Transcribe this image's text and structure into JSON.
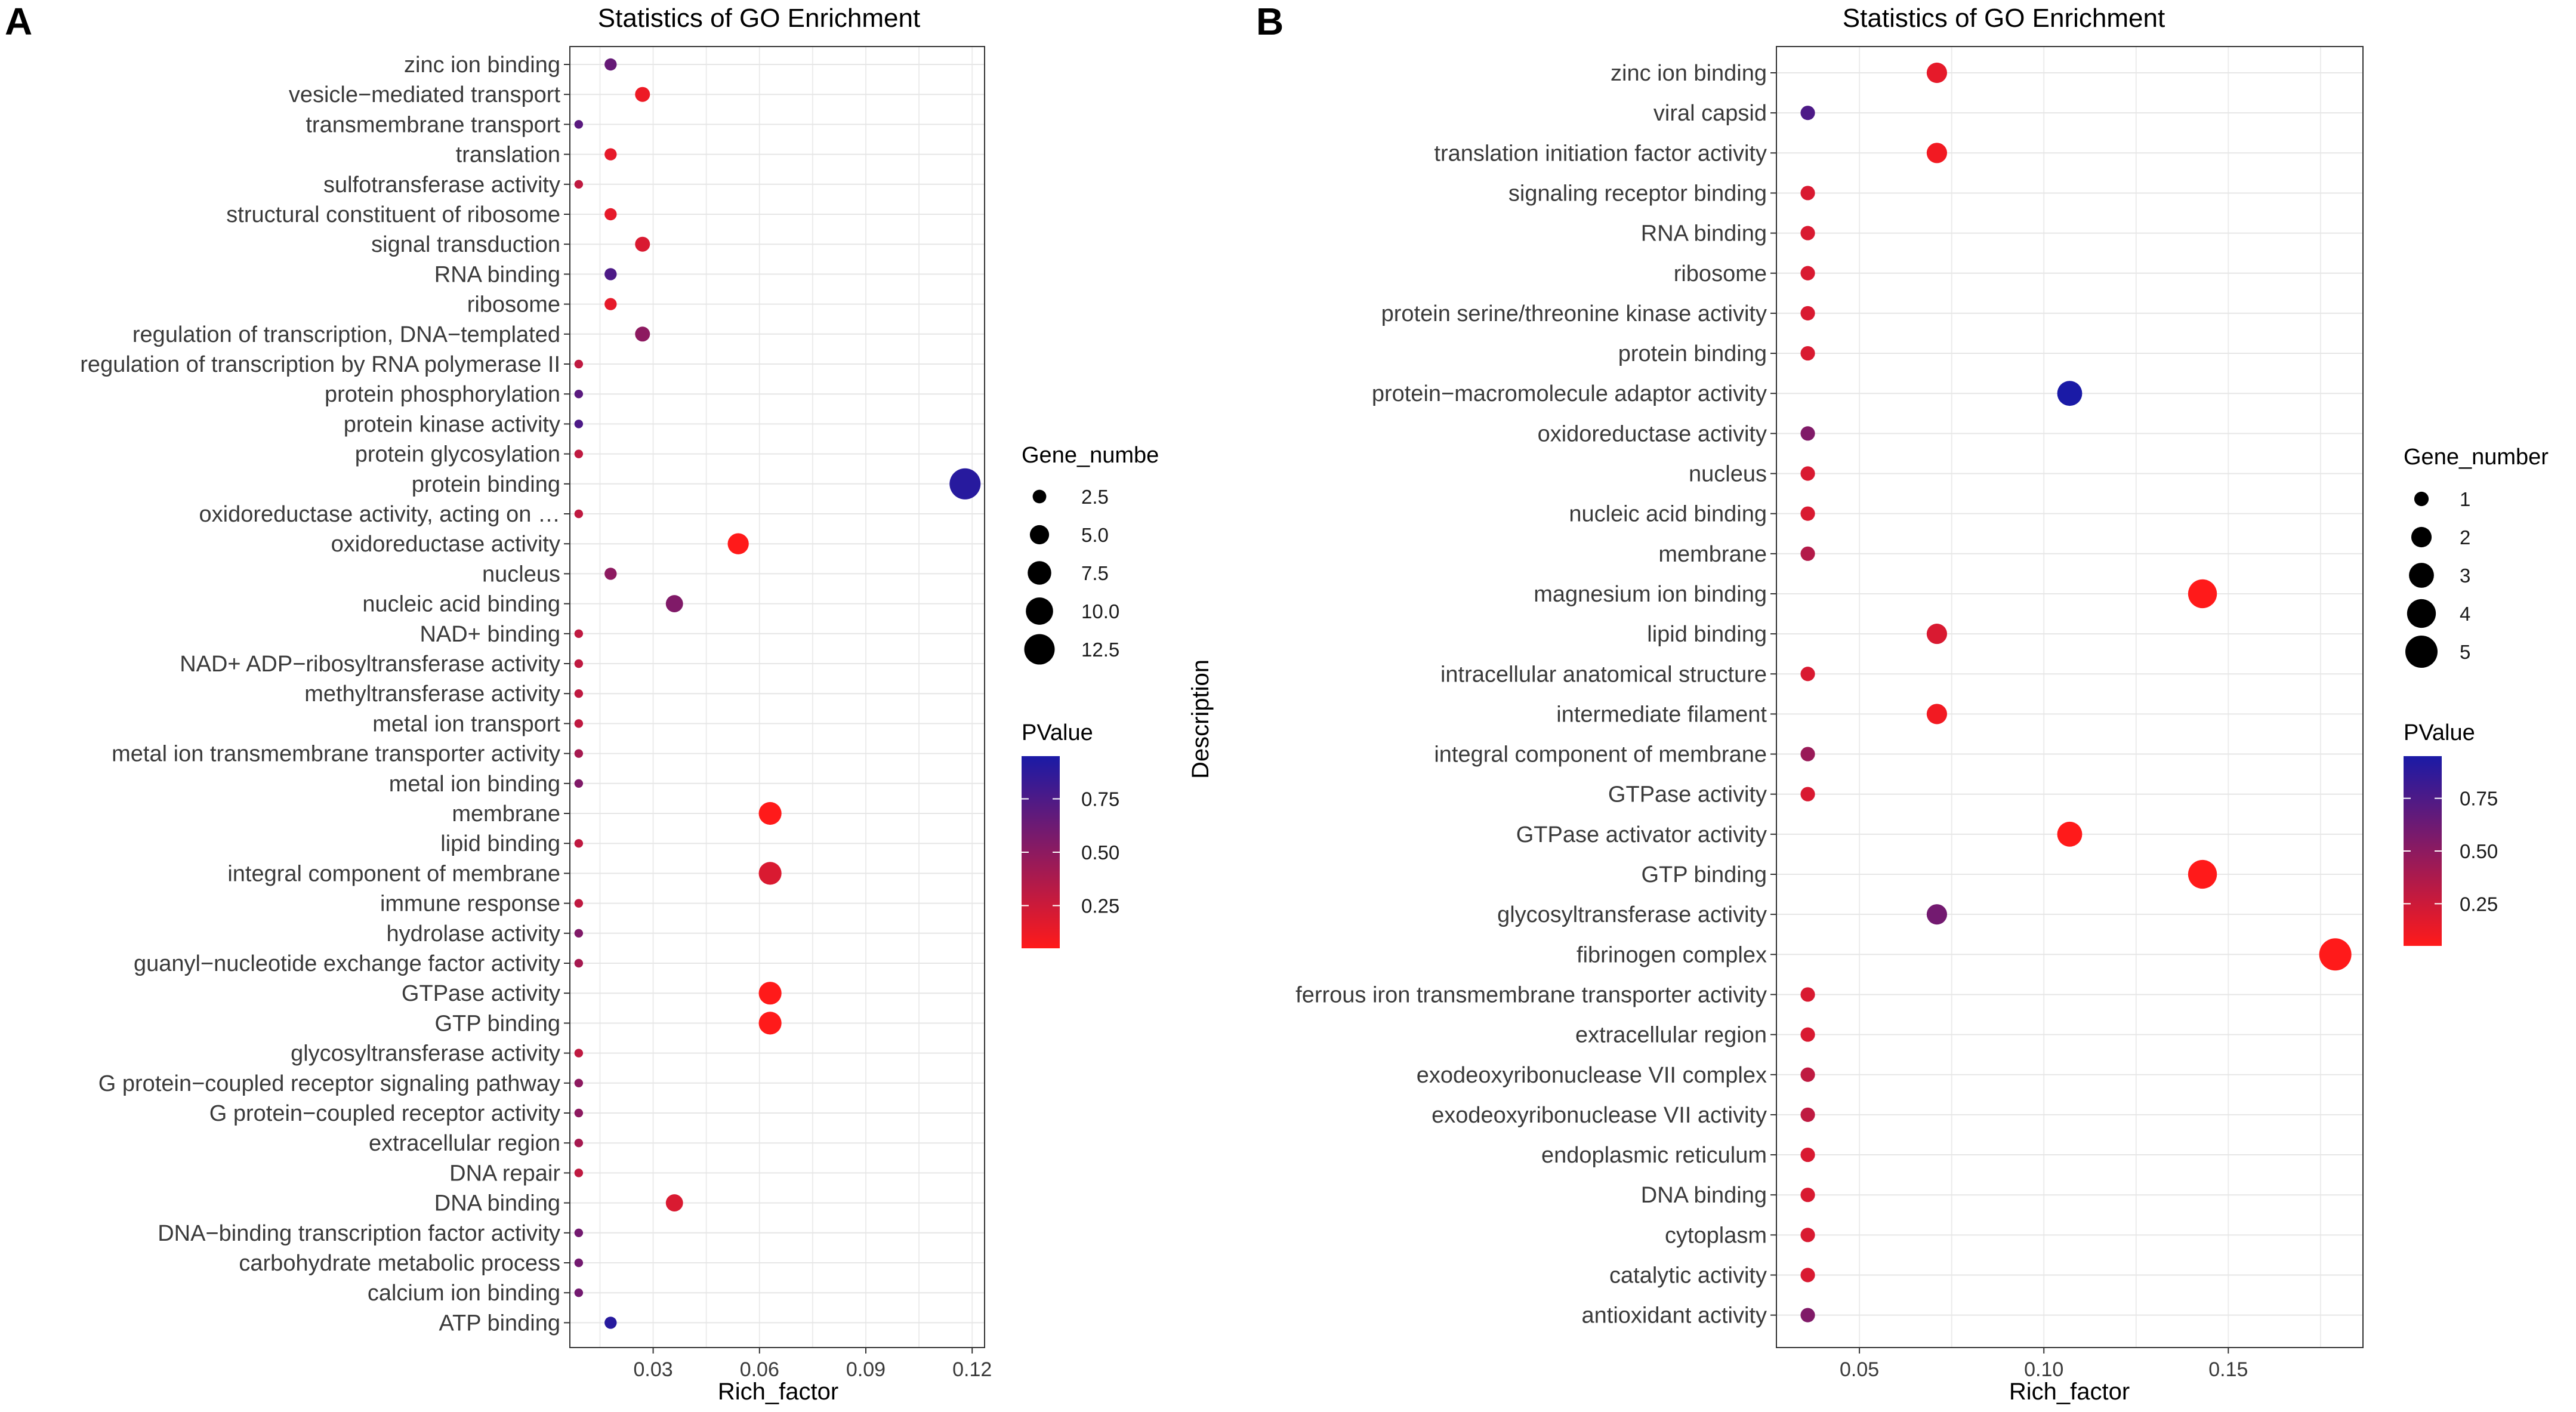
{
  "chart_data": [
    {
      "type": "scatter",
      "panel_label": "A",
      "title": "Statistics of GO Enrichment",
      "xlabel": "Rich_factor",
      "ylabel": "",
      "xlim": [
        0.0065,
        0.1235
      ],
      "xticks": [
        0.03,
        0.06,
        0.09,
        0.12
      ],
      "xtick_labels": [
        "0.03",
        "0.06",
        "0.09",
        "0.12"
      ],
      "size_legend_title": "Gene_numbe",
      "size_legend_values": [
        2.5,
        5.0,
        7.5,
        10.0,
        12.5
      ],
      "size_legend_labels": [
        "2.5",
        "5.0",
        "7.5",
        "10.0",
        "12.5"
      ],
      "color_legend_title": "PValue",
      "color_legend_values": [
        0.75,
        0.5,
        0.25
      ],
      "color_legend_labels": [
        "0.75",
        "0.50",
        "0.25"
      ],
      "color_low": "#ff1a1a",
      "color_high": "#1a1aa6",
      "size_max_gene": 14,
      "annotation": "…",
      "points": [
        {
          "term": "zinc ion binding",
          "x": 0.018,
          "gene": 2,
          "p": 0.65
        },
        {
          "term": "vesicle−mediated transport",
          "x": 0.027,
          "gene": 3,
          "p": 0.12
        },
        {
          "term": "transmembrane transport",
          "x": 0.009,
          "gene": 1,
          "p": 0.7
        },
        {
          "term": "translation",
          "x": 0.018,
          "gene": 2,
          "p": 0.15
        },
        {
          "term": "sulfotransferase activity",
          "x": 0.009,
          "gene": 1,
          "p": 0.3
        },
        {
          "term": "structural constituent of ribosome",
          "x": 0.018,
          "gene": 2,
          "p": 0.15
        },
        {
          "term": "signal transduction",
          "x": 0.027,
          "gene": 3,
          "p": 0.2
        },
        {
          "term": "RNA binding",
          "x": 0.018,
          "gene": 2,
          "p": 0.75
        },
        {
          "term": "ribosome",
          "x": 0.018,
          "gene": 2,
          "p": 0.15
        },
        {
          "term": "regulation of transcription, DNA−templated",
          "x": 0.027,
          "gene": 3,
          "p": 0.5
        },
        {
          "term": "regulation of transcription by RNA polymerase II",
          "x": 0.009,
          "gene": 1,
          "p": 0.3
        },
        {
          "term": "protein phosphorylation",
          "x": 0.009,
          "gene": 1,
          "p": 0.7
        },
        {
          "term": "protein kinase activity",
          "x": 0.009,
          "gene": 1,
          "p": 0.75
        },
        {
          "term": "protein glycosylation",
          "x": 0.009,
          "gene": 1,
          "p": 0.3
        },
        {
          "term": "protein binding",
          "x": 0.118,
          "gene": 13,
          "p": 0.9
        },
        {
          "term": "oxidoreductase activity, acting on   …",
          "x": 0.009,
          "gene": 1,
          "p": 0.3
        },
        {
          "term": "oxidoreductase activity",
          "x": 0.054,
          "gene": 6,
          "p": 0.05
        },
        {
          "term": "nucleus",
          "x": 0.018,
          "gene": 2,
          "p": 0.5
        },
        {
          "term": "nucleic acid binding",
          "x": 0.036,
          "gene": 4,
          "p": 0.55
        },
        {
          "term": "NAD+ binding",
          "x": 0.009,
          "gene": 1,
          "p": 0.3
        },
        {
          "term": "NAD+ ADP−ribosyltransferase activity",
          "x": 0.009,
          "gene": 1,
          "p": 0.3
        },
        {
          "term": "methyltransferase activity",
          "x": 0.009,
          "gene": 1,
          "p": 0.3
        },
        {
          "term": "metal ion transport",
          "x": 0.009,
          "gene": 1,
          "p": 0.3
        },
        {
          "term": "metal ion transmembrane transporter activity",
          "x": 0.009,
          "gene": 1,
          "p": 0.4
        },
        {
          "term": "metal ion binding",
          "x": 0.009,
          "gene": 1,
          "p": 0.55
        },
        {
          "term": "membrane",
          "x": 0.063,
          "gene": 7,
          "p": 0.05
        },
        {
          "term": "lipid binding",
          "x": 0.009,
          "gene": 1,
          "p": 0.3
        },
        {
          "term": "integral component of membrane",
          "x": 0.063,
          "gene": 7,
          "p": 0.2
        },
        {
          "term": "immune response",
          "x": 0.009,
          "gene": 1,
          "p": 0.3
        },
        {
          "term": "hydrolase activity",
          "x": 0.009,
          "gene": 1,
          "p": 0.55
        },
        {
          "term": "guanyl−nucleotide exchange factor activity",
          "x": 0.009,
          "gene": 1,
          "p": 0.4
        },
        {
          "term": "GTPase activity",
          "x": 0.063,
          "gene": 7,
          "p": 0.05
        },
        {
          "term": "GTP binding",
          "x": 0.063,
          "gene": 7,
          "p": 0.05
        },
        {
          "term": "glycosyltransferase activity",
          "x": 0.009,
          "gene": 1,
          "p": 0.3
        },
        {
          "term": "G protein−coupled receptor signaling pathway",
          "x": 0.009,
          "gene": 1,
          "p": 0.5
        },
        {
          "term": "G protein−coupled receptor activity",
          "x": 0.009,
          "gene": 1,
          "p": 0.5
        },
        {
          "term": "extracellular region",
          "x": 0.009,
          "gene": 1,
          "p": 0.4
        },
        {
          "term": "DNA repair",
          "x": 0.009,
          "gene": 1,
          "p": 0.3
        },
        {
          "term": "DNA binding",
          "x": 0.036,
          "gene": 4,
          "p": 0.2
        },
        {
          "term": "DNA−binding transcription factor activity",
          "x": 0.009,
          "gene": 1,
          "p": 0.6
        },
        {
          "term": "carbohydrate metabolic process",
          "x": 0.009,
          "gene": 1,
          "p": 0.6
        },
        {
          "term": "calcium ion binding",
          "x": 0.009,
          "gene": 1,
          "p": 0.6
        },
        {
          "term": "ATP binding",
          "x": 0.018,
          "gene": 2,
          "p": 0.9
        }
      ]
    },
    {
      "type": "scatter",
      "panel_label": "B",
      "title": "Statistics of GO Enrichment",
      "xlabel": "Rich_factor",
      "ylabel": "Description",
      "xlim": [
        0.0275,
        0.1865
      ],
      "xticks": [
        0.05,
        0.1,
        0.15
      ],
      "xtick_labels": [
        "0.05",
        "0.10",
        "0.15"
      ],
      "size_legend_title": "Gene_number",
      "size_legend_values": [
        1,
        2,
        3,
        4,
        5
      ],
      "size_legend_labels": [
        "1",
        "2",
        "3",
        "4",
        "5"
      ],
      "color_legend_title": "PValue",
      "color_legend_values": [
        0.75,
        0.5,
        0.25
      ],
      "color_legend_labels": [
        "0.75",
        "0.50",
        "0.25"
      ],
      "color_low": "#ff1a1a",
      "color_high": "#1a1aa6",
      "size_max_gene": 5,
      "points": [
        {
          "term": "zinc ion binding",
          "x": 0.071,
          "gene": 2,
          "p": 0.15
        },
        {
          "term": "viral capsid",
          "x": 0.036,
          "gene": 1,
          "p": 0.75
        },
        {
          "term": "translation initiation factor activity",
          "x": 0.071,
          "gene": 2,
          "p": 0.1
        },
        {
          "term": "signaling receptor binding",
          "x": 0.036,
          "gene": 1,
          "p": 0.2
        },
        {
          "term": "RNA binding",
          "x": 0.036,
          "gene": 1,
          "p": 0.2
        },
        {
          "term": "ribosome",
          "x": 0.036,
          "gene": 1,
          "p": 0.2
        },
        {
          "term": "protein serine/threonine kinase activity",
          "x": 0.036,
          "gene": 1,
          "p": 0.2
        },
        {
          "term": "protein binding",
          "x": 0.036,
          "gene": 1,
          "p": 0.2
        },
        {
          "term": "protein−macromolecule adaptor activity",
          "x": 0.107,
          "gene": 3,
          "p": 0.95
        },
        {
          "term": "oxidoreductase activity",
          "x": 0.036,
          "gene": 1,
          "p": 0.55
        },
        {
          "term": "nucleus",
          "x": 0.036,
          "gene": 1,
          "p": 0.2
        },
        {
          "term": "nucleic acid binding",
          "x": 0.036,
          "gene": 1,
          "p": 0.2
        },
        {
          "term": "membrane",
          "x": 0.036,
          "gene": 1,
          "p": 0.35
        },
        {
          "term": "magnesium ion binding",
          "x": 0.143,
          "gene": 4,
          "p": 0.05
        },
        {
          "term": "lipid binding",
          "x": 0.071,
          "gene": 2,
          "p": 0.2
        },
        {
          "term": "intracellular anatomical structure",
          "x": 0.036,
          "gene": 1,
          "p": 0.2
        },
        {
          "term": "intermediate filament",
          "x": 0.071,
          "gene": 2,
          "p": 0.1
        },
        {
          "term": "integral component of membrane",
          "x": 0.036,
          "gene": 1,
          "p": 0.45
        },
        {
          "term": "GTPase activity",
          "x": 0.036,
          "gene": 1,
          "p": 0.2
        },
        {
          "term": "GTPase activator activity",
          "x": 0.107,
          "gene": 3,
          "p": 0.05
        },
        {
          "term": "GTP binding",
          "x": 0.143,
          "gene": 4,
          "p": 0.05
        },
        {
          "term": "glycosyltransferase activity",
          "x": 0.071,
          "gene": 2,
          "p": 0.6
        },
        {
          "term": "fibrinogen complex",
          "x": 0.179,
          "gene": 5,
          "p": 0.05
        },
        {
          "term": "ferrous iron transmembrane transporter activity",
          "x": 0.036,
          "gene": 1,
          "p": 0.2
        },
        {
          "term": "extracellular region",
          "x": 0.036,
          "gene": 1,
          "p": 0.2
        },
        {
          "term": "exodeoxyribonuclease VII complex",
          "x": 0.036,
          "gene": 1,
          "p": 0.3
        },
        {
          "term": "exodeoxyribonuclease VII activity",
          "x": 0.036,
          "gene": 1,
          "p": 0.3
        },
        {
          "term": "endoplasmic reticulum",
          "x": 0.036,
          "gene": 1,
          "p": 0.2
        },
        {
          "term": "DNA binding",
          "x": 0.036,
          "gene": 1,
          "p": 0.2
        },
        {
          "term": "cytoplasm",
          "x": 0.036,
          "gene": 1,
          "p": 0.2
        },
        {
          "term": "catalytic activity",
          "x": 0.036,
          "gene": 1,
          "p": 0.2
        },
        {
          "term": "antioxidant activity",
          "x": 0.036,
          "gene": 1,
          "p": 0.55
        }
      ]
    }
  ]
}
